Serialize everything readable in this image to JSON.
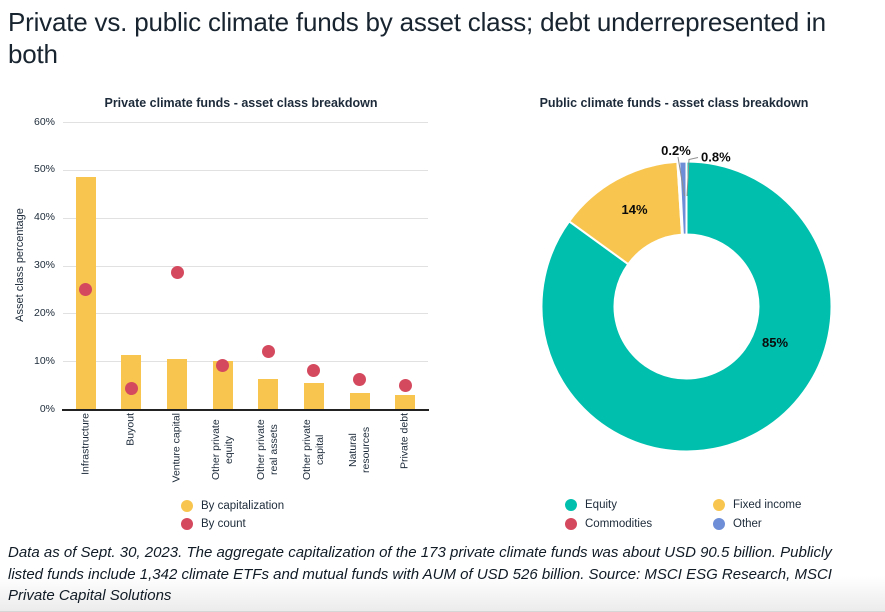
{
  "page": {
    "title": "Private vs. public climate funds by asset class; debt underrepresented in both",
    "footnote": "Data as of Sept. 30, 2023. The aggregate capitalization of the 173 private climate funds was about USD 90.5 billion. Publicly listed funds include 1,342 climate ETFs and mutual funds with AUM of USD 526 billion. Source: MSCI ESG Research, MSCI Private Capital Solutions"
  },
  "colors": {
    "navy_text": "#1c2a39",
    "yellow": "#F8C64F",
    "red": "#D5495E",
    "teal": "#00BFAD",
    "blue": "#6E8ED8",
    "gridline": "#e1e1e1",
    "axis": "#222222"
  },
  "chart_data": [
    {
      "type": "bar",
      "title": "Private climate funds - asset class breakdown",
      "xlabel": "",
      "ylabel": "Asset class percentage",
      "ylim": [
        0,
        60
      ],
      "ytick_step": 10,
      "ytick_suffix": "%",
      "grid": "horizontal",
      "legend_position": "bottom",
      "categories": [
        "Infrastructure",
        "Buyout",
        "Venture capital",
        "Other private equity",
        "Other private real assets",
        "Other private capital",
        "Natural resources",
        "Private debt"
      ],
      "series": [
        {
          "name": "By capitalization",
          "type": "bar",
          "color": "#F8C64F",
          "values": [
            48.5,
            11.3,
            10.4,
            10.0,
            6.3,
            5.4,
            3.3,
            2.9
          ]
        },
        {
          "name": "By count",
          "type": "scatter",
          "color": "#D5495E",
          "values": [
            24.9,
            4.3,
            28.5,
            9.1,
            12.0,
            8.1,
            6.2,
            4.9
          ]
        }
      ]
    },
    {
      "type": "pie",
      "title": "Public climate funds - asset class breakdown",
      "donut": true,
      "start_angle_deg": 0,
      "direction": "clockwise",
      "legend_position": "bottom",
      "slices": [
        {
          "label": "Equity",
          "value": 85,
          "display": "85%",
          "color": "#00BFAD"
        },
        {
          "label": "Fixed income",
          "value": 14,
          "display": "14%",
          "color": "#F8C64F"
        },
        {
          "label": "Commodities",
          "value": 0.2,
          "display": "0.2%",
          "color": "#D5495E"
        },
        {
          "label": "Other",
          "value": 0.8,
          "display": "0.8%",
          "color": "#6E8ED8"
        }
      ]
    }
  ]
}
